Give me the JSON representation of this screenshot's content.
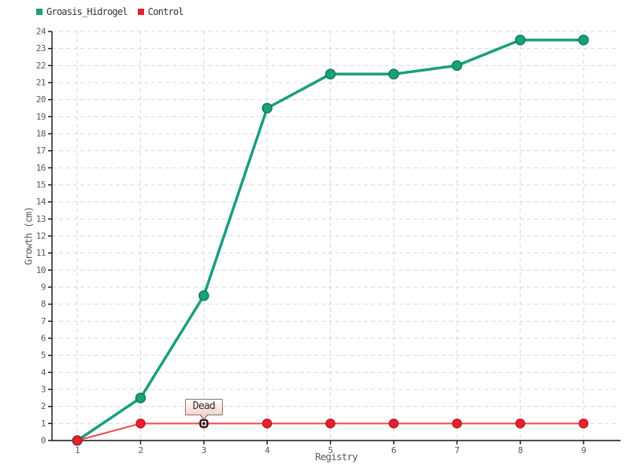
{
  "legend": {
    "items": [
      {
        "label": "Groasis_Hidrogel",
        "color": "#1aa179"
      },
      {
        "label": "Control",
        "color": "#e8212e"
      }
    ]
  },
  "chart_data": {
    "type": "line",
    "title": "",
    "xlabel": "Registry",
    "ylabel": "Growth (cm)",
    "x": [
      1,
      2,
      3,
      4,
      5,
      6,
      7,
      8,
      9
    ],
    "series": [
      {
        "name": "Groasis_Hidrogel",
        "values": [
          0,
          2.5,
          8.5,
          19.5,
          21.5,
          21.5,
          22,
          23.5,
          23.5
        ],
        "line_color": "#199e7e",
        "line_width": 3.5,
        "marker_fill": "#1aa179",
        "marker_stroke": "#0d7d5c",
        "marker_radius": 6
      },
      {
        "name": "Control",
        "values": [
          0,
          1,
          1,
          1,
          1,
          1,
          1,
          1,
          1
        ],
        "line_color": "#f04848",
        "line_width": 2,
        "marker_fill": "#e8212e",
        "marker_stroke": "#c41425",
        "marker_radius": 5.5
      }
    ],
    "annotation": {
      "text": "Dead",
      "x": 3,
      "y": 1,
      "series": "Control"
    },
    "xlim": [
      0.6,
      9.56
    ],
    "ylim": [
      0,
      24
    ],
    "xticks": [
      1,
      2,
      3,
      4,
      5,
      6,
      7,
      8,
      9
    ],
    "yticks": [
      0,
      1,
      2,
      3,
      4,
      5,
      6,
      7,
      8,
      9,
      10,
      11,
      12,
      13,
      14,
      15,
      16,
      17,
      18,
      19,
      20,
      21,
      22,
      23,
      24
    ],
    "grid": "dashed",
    "legend_position": "top-left"
  },
  "colors": {
    "background": "#ffffff",
    "grid": "#d9d9d9",
    "axis": "#141414",
    "tick_label": "#5a5a5a",
    "axis_title": "#5a5a5a",
    "legend_text": "#333333",
    "annotation_bg_top": "#ffffff",
    "annotation_bg_bottom": "#f8d2cc",
    "annotation_border": "#7a7a7a",
    "annotation_marker_fill": "#ffffff",
    "annotation_marker_stroke": "#111111"
  }
}
